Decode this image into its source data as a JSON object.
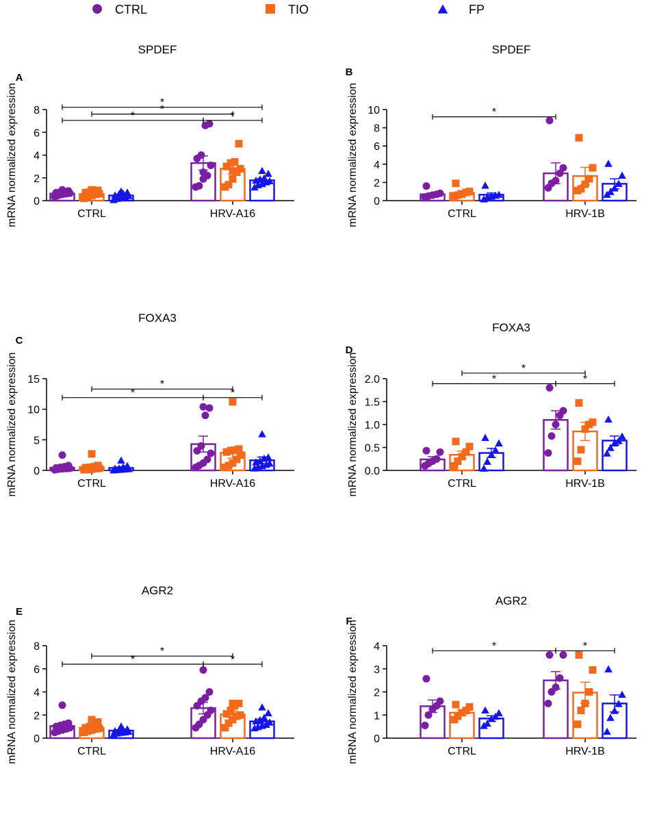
{
  "colors": {
    "CTRL": "#7B1FA2",
    "TIO": "#F26B1D",
    "FP": "#1515E6",
    "axis": "#000000"
  },
  "legend": [
    {
      "label": "CTRL",
      "marker": "circle",
      "color_key": "CTRL"
    },
    {
      "label": "TIO",
      "marker": "square",
      "color_key": "TIO"
    },
    {
      "label": "FP",
      "marker": "triangle",
      "color_key": "FP"
    }
  ],
  "chart_data": [
    {
      "panel": "A",
      "title": "SPDEF",
      "type": "bar",
      "ylabel": "mRNA normalized expression",
      "ylim": [
        0,
        8
      ],
      "yticks": [
        "0",
        "2",
        "4",
        "6",
        "8"
      ],
      "categories": [
        "CTRL",
        "HRV-A16"
      ],
      "series": [
        {
          "name": "CTRL",
          "means": [
            0.62,
            3.3
          ],
          "sems": [
            0.1,
            0.62
          ],
          "points": [
            [
              0.35,
              0.45,
              0.55,
              0.6,
              0.65,
              0.7,
              0.75,
              0.8,
              0.85,
              0.95
            ],
            [
              1.2,
              1.3,
              1.9,
              2.2,
              3.1,
              3.7,
              4.0,
              6.6,
              6.75,
              2.5
            ]
          ]
        },
        {
          "name": "TIO",
          "means": [
            0.58,
            2.8
          ],
          "sems": [
            0.12,
            0.5
          ],
          "points": [
            [
              0.2,
              0.35,
              0.45,
              0.55,
              0.6,
              0.7,
              0.75,
              0.85,
              0.9,
              0.95
            ],
            [
              1.2,
              1.4,
              1.9,
              2.5,
              2.8,
              3.0,
              3.3,
              3.4,
              5.0,
              2.6
            ]
          ]
        },
        {
          "name": "FP",
          "means": [
            0.45,
            1.78
          ],
          "sems": [
            0.1,
            0.16
          ],
          "points": [
            [
              0.1,
              0.2,
              0.3,
              0.35,
              0.45,
              0.5,
              0.6,
              0.65,
              0.75,
              0.85
            ],
            [
              1.2,
              1.4,
              1.5,
              1.65,
              1.75,
              1.8,
              1.9,
              2.0,
              2.4,
              2.65
            ]
          ]
        }
      ],
      "significance": [
        {
          "from": "CTRL|CTRL",
          "to": "FP|HRV-A16",
          "y": 8.2,
          "label": "*"
        },
        {
          "from": "TIO|CTRL",
          "to": "TIO|HRV-A16",
          "y": 7.6,
          "label": "*"
        },
        {
          "from": "CTRL|CTRL",
          "to": "CTRL|HRV-A16",
          "y": 7.05,
          "label": "*"
        },
        {
          "from": "CTRL|HRV-A16",
          "to": "FP|HRV-A16",
          "y": 7.05,
          "label": "*"
        }
      ]
    },
    {
      "panel": "B",
      "title": "SPDEF",
      "type": "bar",
      "ylabel": "mRNA normalized expression",
      "ylim": [
        0,
        10
      ],
      "yticks": [
        "0",
        "2",
        "4",
        "6",
        "8",
        "10"
      ],
      "categories": [
        "CTRL",
        "HRV-1B"
      ],
      "series": [
        {
          "name": "CTRL",
          "means": [
            0.7,
            3.0
          ],
          "sems": [
            0.15,
            1.15
          ],
          "points": [
            [
              0.4,
              0.5,
              0.6,
              0.7,
              0.8,
              1.6
            ],
            [
              1.4,
              1.9,
              2.2,
              3.0,
              3.6,
              8.8
            ]
          ]
        },
        {
          "name": "TIO",
          "means": [
            0.85,
            2.7
          ],
          "sems": [
            0.25,
            0.95
          ],
          "points": [
            [
              0.5,
              0.6,
              0.7,
              0.9,
              1.0,
              1.9
            ],
            [
              1.1,
              1.3,
              1.8,
              2.4,
              3.6,
              6.9
            ]
          ]
        },
        {
          "name": "FP",
          "means": [
            0.65,
            1.85
          ],
          "sems": [
            0.2,
            0.55
          ],
          "points": [
            [
              0.2,
              0.4,
              0.5,
              0.6,
              0.7,
              1.7
            ],
            [
              0.7,
              1.0,
              1.4,
              1.9,
              2.8,
              4.1
            ]
          ]
        }
      ],
      "significance": [
        {
          "from": "CTRL|CTRL",
          "to": "CTRL|HRV-1B",
          "y": 9.2,
          "label": "*"
        }
      ]
    },
    {
      "panel": "C",
      "title": "FOXA3",
      "type": "bar",
      "ylabel": "mRNA normalized expression",
      "ylim": [
        0,
        15
      ],
      "yticks": [
        "0",
        "5",
        "10",
        "15"
      ],
      "categories": [
        "CTRL",
        "HRV-A16"
      ],
      "series": [
        {
          "name": "CTRL",
          "means": [
            0.45,
            4.3
          ],
          "sems": [
            0.25,
            1.3
          ],
          "points": [
            [
              0.1,
              0.2,
              0.25,
              0.3,
              0.35,
              0.4,
              0.5,
              0.6,
              0.8,
              2.5
            ],
            [
              0.5,
              0.8,
              1.2,
              1.8,
              2.8,
              3.2,
              4.0,
              9.0,
              10.2,
              10.4
            ]
          ]
        },
        {
          "name": "TIO",
          "means": [
            0.55,
            2.9
          ],
          "sems": [
            0.25,
            0.9
          ],
          "points": [
            [
              0.1,
              0.15,
              0.2,
              0.3,
              0.35,
              0.45,
              0.5,
              0.6,
              0.8,
              2.7
            ],
            [
              0.5,
              0.8,
              1.2,
              1.8,
              2.5,
              3.0,
              3.2,
              3.3,
              3.5,
              11.2
            ]
          ]
        },
        {
          "name": "FP",
          "means": [
            0.4,
            1.65
          ],
          "sems": [
            0.15,
            0.55
          ],
          "points": [
            [
              0.1,
              0.15,
              0.2,
              0.25,
              0.3,
              0.35,
              0.4,
              0.6,
              0.8,
              1.7
            ],
            [
              0.4,
              0.6,
              0.8,
              1.0,
              1.2,
              1.4,
              1.6,
              2.0,
              2.2,
              6.0
            ]
          ]
        }
      ],
      "significance": [
        {
          "from": "TIO|CTRL",
          "to": "TIO|HRV-A16",
          "y": 13.3,
          "label": "*"
        },
        {
          "from": "CTRL|CTRL",
          "to": "CTRL|HRV-A16",
          "y": 11.9,
          "label": "*"
        },
        {
          "from": "CTRL|HRV-A16",
          "to": "FP|HRV-A16",
          "y": 11.9,
          "label": "*"
        }
      ]
    },
    {
      "panel": "D",
      "title": "FOXA3",
      "type": "bar",
      "ylabel": "mRNA normalized expression",
      "ylim": [
        0,
        2.0
      ],
      "yticks": [
        "0.0",
        "0.5",
        "1.0",
        "1.5",
        "2.0"
      ],
      "categories": [
        "CTRL",
        "HRV-1B"
      ],
      "series": [
        {
          "name": "CTRL",
          "means": [
            0.24,
            1.1
          ],
          "sems": [
            0.06,
            0.2
          ],
          "points": [
            [
              0.1,
              0.15,
              0.2,
              0.25,
              0.4,
              0.43
            ],
            [
              0.38,
              0.75,
              1.0,
              1.2,
              1.3,
              1.8
            ]
          ]
        },
        {
          "name": "TIO",
          "means": [
            0.34,
            0.85
          ],
          "sems": [
            0.08,
            0.2
          ],
          "points": [
            [
              0.1,
              0.2,
              0.3,
              0.4,
              0.52,
              0.63
            ],
            [
              0.2,
              0.45,
              0.9,
              1.0,
              1.05,
              1.47
            ]
          ]
        },
        {
          "name": "FP",
          "means": [
            0.38,
            0.65
          ],
          "sems": [
            0.1,
            0.1
          ],
          "points": [
            [
              0.05,
              0.2,
              0.35,
              0.45,
              0.6,
              0.72
            ],
            [
              0.38,
              0.5,
              0.6,
              0.65,
              0.75,
              1.12
            ]
          ]
        }
      ],
      "significance": [
        {
          "from": "TIO|CTRL",
          "to": "TIO|HRV-1B",
          "y": 2.12,
          "label": "*"
        },
        {
          "from": "CTRL|CTRL",
          "to": "CTRL|HRV-1B",
          "y": 1.89,
          "label": "*"
        },
        {
          "from": "CTRL|HRV-1B",
          "to": "FP|HRV-1B",
          "y": 1.89,
          "label": "*"
        }
      ]
    },
    {
      "panel": "E",
      "title": "AGR2",
      "type": "bar",
      "ylabel": "mRNA normalized expression",
      "ylim": [
        0,
        8
      ],
      "yticks": [
        "0",
        "2",
        "4",
        "6",
        "8"
      ],
      "categories": [
        "CTRL",
        "HRV-A16"
      ],
      "series": [
        {
          "name": "CTRL",
          "means": [
            1.05,
            2.6
          ],
          "sems": [
            0.2,
            0.5
          ],
          "points": [
            [
              0.5,
              0.6,
              0.7,
              0.8,
              0.9,
              1.0,
              1.1,
              1.2,
              1.3,
              2.85
            ],
            [
              0.9,
              1.2,
              1.6,
              2.0,
              2.4,
              2.8,
              3.2,
              3.5,
              4.0,
              5.9
            ]
          ]
        },
        {
          "name": "TIO",
          "means": [
            0.9,
            2.05
          ],
          "sems": [
            0.15,
            0.3
          ],
          "points": [
            [
              0.5,
              0.6,
              0.7,
              0.8,
              0.85,
              0.9,
              1.0,
              1.2,
              1.4,
              1.6
            ],
            [
              0.9,
              1.3,
              1.6,
              1.9,
              2.0,
              2.1,
              2.4,
              2.8,
              3.0,
              3.0
            ]
          ]
        },
        {
          "name": "FP",
          "means": [
            0.65,
            1.45
          ],
          "sems": [
            0.08,
            0.2
          ],
          "points": [
            [
              0.35,
              0.45,
              0.5,
              0.55,
              0.6,
              0.65,
              0.7,
              0.75,
              0.8,
              1.05
            ],
            [
              0.9,
              1.0,
              1.1,
              1.2,
              1.4,
              1.5,
              1.6,
              1.8,
              2.2,
              2.7
            ]
          ]
        }
      ],
      "significance": [
        {
          "from": "TIO|CTRL",
          "to": "TIO|HRV-A16",
          "y": 7.1,
          "label": "*"
        },
        {
          "from": "CTRL|CTRL",
          "to": "CTRL|HRV-A16",
          "y": 6.4,
          "label": "*"
        },
        {
          "from": "CTRL|HRV-A16",
          "to": "FP|HRV-A16",
          "y": 6.4,
          "label": "*"
        }
      ]
    },
    {
      "panel": "F",
      "title": "AGR2",
      "type": "bar",
      "ylabel": "mRNA normalized expression",
      "ylim": [
        0,
        4
      ],
      "yticks": [
        "0",
        "1",
        "2",
        "3",
        "4"
      ],
      "categories": [
        "CTRL",
        "HRV-1B"
      ],
      "series": [
        {
          "name": "CTRL",
          "means": [
            1.38,
            2.5
          ],
          "sems": [
            0.27,
            0.38
          ],
          "points": [
            [
              0.55,
              1.0,
              1.25,
              1.4,
              1.6,
              2.57
            ],
            [
              1.5,
              2.0,
              2.2,
              2.6,
              3.6,
              3.6
            ]
          ]
        },
        {
          "name": "TIO",
          "means": [
            1.1,
            1.97
          ],
          "sems": [
            0.12,
            0.45
          ],
          "points": [
            [
              0.8,
              0.95,
              1.1,
              1.2,
              1.35,
              1.45
            ],
            [
              0.6,
              1.2,
              1.5,
              2.0,
              2.95,
              3.6
            ]
          ]
        },
        {
          "name": "FP",
          "means": [
            0.85,
            1.5
          ],
          "sems": [
            0.12,
            0.37
          ],
          "points": [
            [
              0.55,
              0.65,
              0.85,
              0.95,
              1.1,
              1.22
            ],
            [
              0.3,
              0.9,
              1.2,
              1.5,
              1.9,
              3.0
            ]
          ]
        }
      ],
      "significance": [
        {
          "from": "CTRL|CTRL",
          "to": "CTRL|HRV-1B",
          "y": 3.78,
          "label": "*"
        },
        {
          "from": "CTRL|HRV-1B",
          "to": "FP|HRV-1B",
          "y": 3.78,
          "label": "*"
        }
      ]
    }
  ]
}
